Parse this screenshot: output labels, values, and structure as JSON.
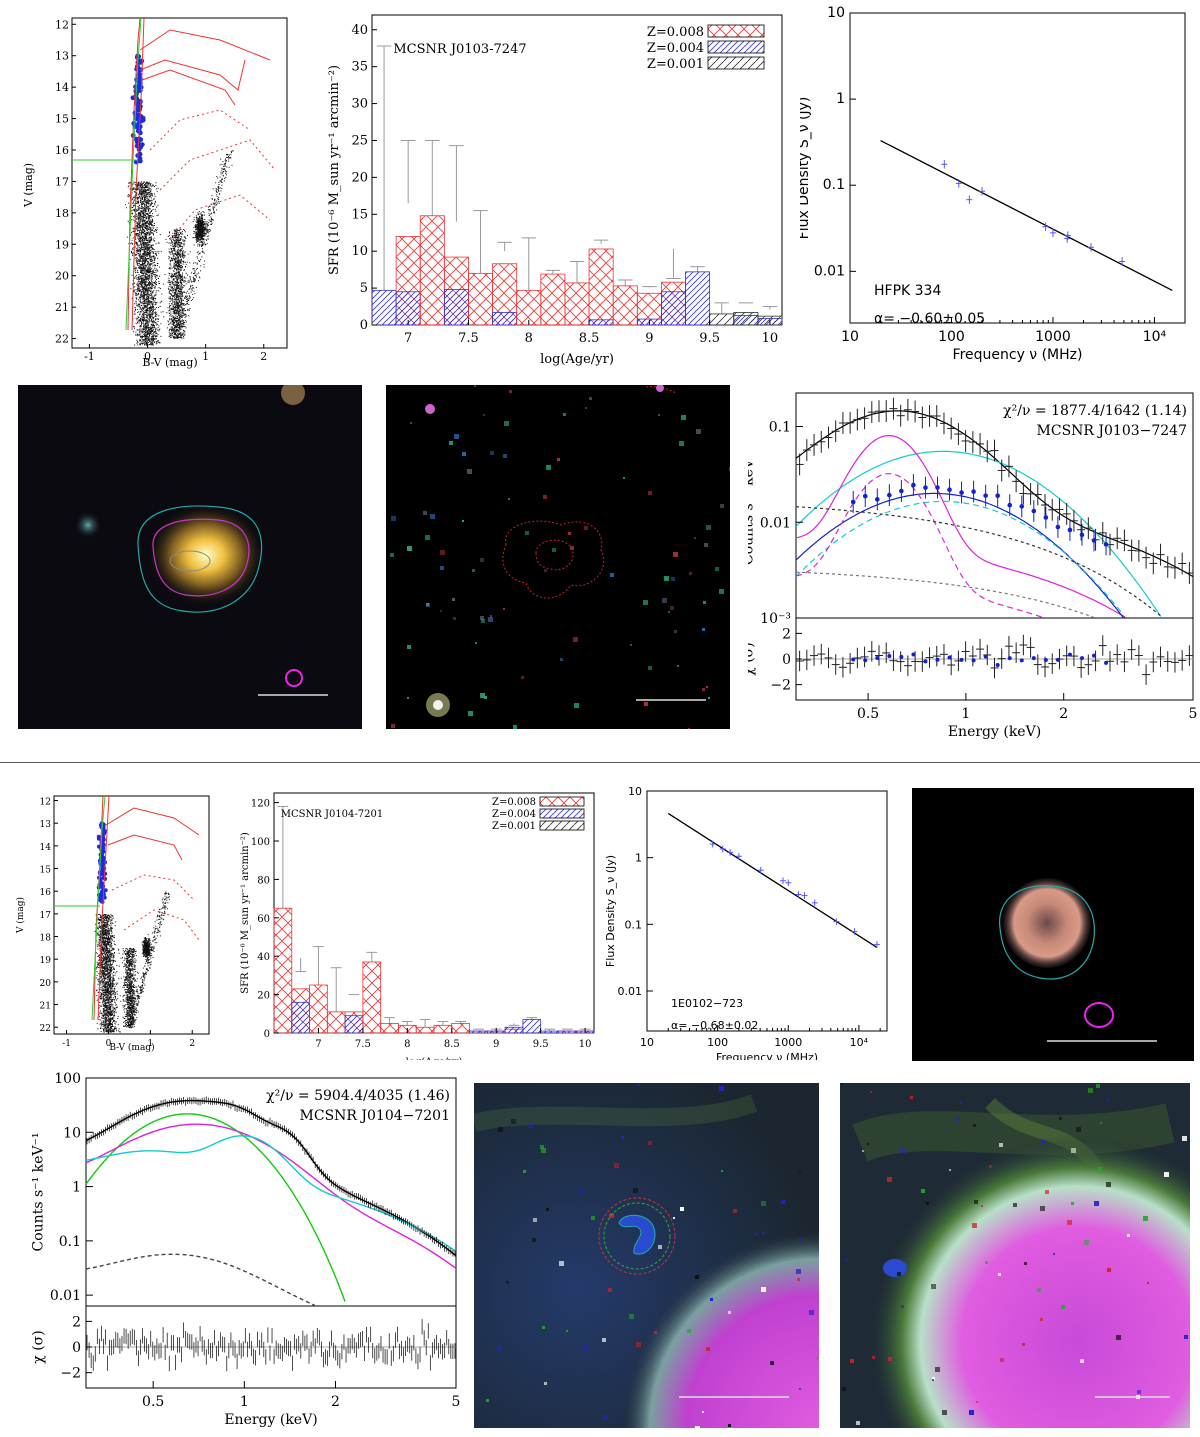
{
  "remnant1": {
    "cmd": {
      "xlabel": "B-V (mag)",
      "ylabel": "V (mag)",
      "xticks": [
        "-1",
        "0",
        "1",
        "2"
      ],
      "yticks": [
        "12",
        "13",
        "14",
        "15",
        "16",
        "17",
        "18",
        "19",
        "20",
        "21",
        "22"
      ]
    },
    "sfh": {
      "title": "MCSNR J0103-7247",
      "ylabel": "SFR (10⁻⁶ M_sun yr⁻¹ arcmin⁻²)",
      "xlabel": "log(Age/yr)",
      "legend": [
        "Z=0.008",
        "Z=0.004",
        "Z=0.001"
      ],
      "xticks": [
        "7",
        "7.5",
        "8",
        "8.5",
        "9",
        "9.5",
        "10"
      ],
      "yticks": [
        "0",
        "5",
        "10",
        "15",
        "20",
        "25",
        "30",
        "35",
        "40"
      ]
    },
    "radio": {
      "source": "HFPK 334",
      "alpha": "α=  −0.60±0.05",
      "xlabel": "Frequency ν (MHz)",
      "ylabel": "Flux Density S_ν (Jy)",
      "xticks": [
        "10",
        "100",
        "1000",
        "10⁴"
      ],
      "yticks": [
        "10",
        "1",
        "0.1",
        "0.01"
      ]
    },
    "xray": {
      "stat": "χ²/ν = 1877.4/1642 (1.14)",
      "name": "MCSNR J0103−7247",
      "ylabel": "Counts s⁻¹ keV⁻¹",
      "reslabel": "χ (σ)",
      "xlabel": "Energy (keV)",
      "yticks": [
        "0.1",
        "0.01",
        "10⁻³"
      ],
      "rticks": [
        "2",
        "0",
        "−2"
      ],
      "xticks": [
        "0.5",
        "1",
        "2",
        "5"
      ]
    }
  },
  "remnant2": {
    "cmd": {
      "xlabel": "B-V (mag)",
      "ylabel": "V (mag)",
      "xticks": [
        "-1",
        "0",
        "1",
        "2"
      ],
      "yticks": [
        "12",
        "13",
        "14",
        "15",
        "16",
        "17",
        "18",
        "19",
        "20",
        "21",
        "22"
      ]
    },
    "sfh": {
      "title": "MCSNR J0104-7201",
      "ylabel": "SFR (10⁻⁶ M_sun yr⁻¹ arcmin⁻²)",
      "xlabel": "log(Age/yr)",
      "legend": [
        "Z=0.008",
        "Z=0.004",
        "Z=0.001"
      ],
      "xticks": [
        "7",
        "7.5",
        "8",
        "8.5",
        "9",
        "9.5",
        "10"
      ],
      "yticks": [
        "0",
        "20",
        "40",
        "60",
        "80",
        "100",
        "120"
      ]
    },
    "radio": {
      "source": "1E0102−723",
      "alpha": "α=  −0.68±0.02",
      "xlabel": "Frequency ν (MHz)",
      "ylabel": "Flux Density S_ν (Jy)",
      "xticks": [
        "10",
        "100",
        "1000",
        "10⁴"
      ],
      "yticks": [
        "10",
        "1",
        "0.1",
        "0.01"
      ]
    },
    "xray": {
      "stat": "χ²/ν = 5904.4/4035 (1.46)",
      "name": "MCSNR J0104−7201",
      "ylabel": "Counts s⁻¹ keV⁻¹",
      "reslabel": "χ (σ)",
      "xlabel": "Energy (keV)",
      "yticks": [
        "100",
        "10",
        "1",
        "0.1",
        "0.01"
      ],
      "rticks": [
        "2",
        "0",
        "−2"
      ],
      "xticks": [
        "0.5",
        "1",
        "2",
        "5"
      ]
    }
  },
  "chart_data": [
    {
      "type": "bar",
      "title": "MCSNR J0103-7247",
      "xlabel": "log(Age/yr)",
      "ylabel": "SFR (10^-6 M_sun yr^-1 arcmin^-2)",
      "ylim": [
        0,
        42
      ],
      "x": [
        6.8,
        7.0,
        7.2,
        7.4,
        7.6,
        7.8,
        8.0,
        8.2,
        8.4,
        8.6,
        8.8,
        9.0,
        9.2,
        9.4,
        9.6,
        9.8,
        10.0
      ],
      "series": [
        {
          "name": "Z=0.008",
          "values": [
            0,
            12,
            14.8,
            9.2,
            7,
            8.3,
            4.7,
            6.9,
            5.7,
            10.3,
            5.3,
            4.3,
            5.8,
            0,
            0,
            0,
            0
          ]
        },
        {
          "name": "Z=0.004",
          "values": [
            4.7,
            4.5,
            0,
            4.8,
            0,
            1.7,
            0,
            0,
            0,
            0.7,
            0,
            0.8,
            4.5,
            7.2,
            0,
            1.3,
            0.9
          ]
        },
        {
          "name": "Z=0.001",
          "values": [
            0,
            0,
            0,
            0,
            0,
            0,
            0,
            0,
            0,
            0,
            0,
            0,
            0,
            0,
            1.5,
            1.7,
            1.2
          ]
        }
      ],
      "errors_upper": [
        37.8,
        25,
        25,
        24.3,
        15.5,
        11.2,
        11.8,
        7.4,
        8.6,
        11.5,
        6.1,
        5.2,
        6.3,
        7.9,
        3,
        3,
        2.5
      ]
    },
    {
      "type": "bar",
      "title": "MCSNR J0104-7201",
      "xlabel": "log(Age/yr)",
      "ylabel": "SFR (10^-6 M_sun yr^-1 arcmin^-2)",
      "ylim": [
        0,
        125
      ],
      "x": [
        6.6,
        6.8,
        7.0,
        7.2,
        7.4,
        7.6,
        7.8,
        8.0,
        8.2,
        8.4,
        8.6,
        8.8,
        9.0,
        9.2,
        9.4,
        9.6,
        9.8,
        10.0
      ],
      "series": [
        {
          "name": "Z=0.008",
          "values": [
            65,
            23,
            25,
            11,
            11,
            37,
            5,
            4,
            3,
            4,
            5,
            1,
            1,
            2,
            0,
            0,
            1,
            1
          ]
        },
        {
          "name": "Z=0.004",
          "values": [
            0,
            16,
            0,
            0,
            9,
            0,
            0,
            0,
            0,
            0,
            0,
            1,
            1,
            3,
            7,
            1,
            1,
            1
          ]
        },
        {
          "name": "Z=0.001",
          "values": [
            0,
            0,
            0,
            0,
            0,
            0,
            0,
            0,
            0,
            0,
            0,
            0,
            0,
            0,
            0,
            0,
            0,
            0
          ]
        }
      ],
      "errors_upper": [
        118,
        32,
        45,
        34,
        20,
        42,
        8,
        6,
        7,
        6,
        6,
        2,
        2,
        4,
        8,
        2,
        2,
        2
      ]
    },
    {
      "type": "scatter",
      "title": "HFPK 334",
      "xlabel": "Frequency ν (MHz)",
      "ylabel": "Flux Density S_ν (Jy)",
      "xscale": "log",
      "yscale": "log",
      "x": [
        85,
        118,
        150,
        200,
        843,
        1000,
        1380,
        1400,
        2370,
        4800
      ],
      "y": [
        0.175,
        0.105,
        0.068,
        0.085,
        0.033,
        0.028,
        0.024,
        0.026,
        0.019,
        0.013
      ],
      "fit": {
        "alpha": -0.6,
        "alpha_err": 0.05,
        "x": [
          20,
          15000
        ],
        "y": [
          0.33,
          0.006
        ]
      }
    },
    {
      "type": "scatter",
      "title": "1E0102−723",
      "xlabel": "Frequency ν (MHz)",
      "ylabel": "Flux Density S_ν (Jy)",
      "xscale": "log",
      "yscale": "log",
      "x": [
        85,
        118,
        150,
        200,
        408,
        843,
        1000,
        1400,
        1700,
        2370,
        4800,
        8640,
        18000
      ],
      "y": [
        1.6,
        1.35,
        1.2,
        1.05,
        0.65,
        0.45,
        0.42,
        0.28,
        0.27,
        0.21,
        0.11,
        0.078,
        0.05
      ],
      "fit": {
        "alpha": -0.68,
        "alpha_err": 0.02,
        "x": [
          20,
          18000
        ],
        "y": [
          4.6,
          0.045
        ]
      }
    }
  ]
}
